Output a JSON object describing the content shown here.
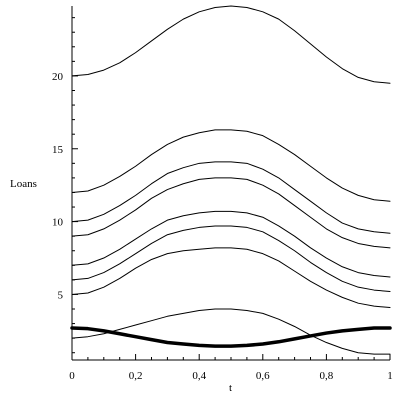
{
  "chart_data": {
    "type": "line",
    "xlabel": "t",
    "ylabel": "Loans",
    "xlim": [
      0,
      1
    ],
    "ylim": [
      0.5,
      24.8
    ],
    "grid": false,
    "x_ticks": [
      0,
      0.2,
      0.4,
      0.6,
      0.8,
      1
    ],
    "x_tick_labels": [
      "0",
      "0,2",
      "0,4",
      "0,6",
      "0,8",
      "1"
    ],
    "y_ticks": [
      5,
      10,
      15,
      20
    ],
    "y_tick_labels": [
      "5",
      "10",
      "15",
      "20"
    ],
    "x": [
      0,
      0.05,
      0.1,
      0.15,
      0.2,
      0.25,
      0.3,
      0.35,
      0.4,
      0.45,
      0.5,
      0.55,
      0.6,
      0.65,
      0.7,
      0.75,
      0.8,
      0.85,
      0.9,
      0.95,
      1
    ],
    "series": [
      {
        "values": [
          20.0,
          20.1,
          20.4,
          20.9,
          21.6,
          22.4,
          23.2,
          23.9,
          24.4,
          24.7,
          24.8,
          24.7,
          24.4,
          23.9,
          23.1,
          22.2,
          21.3,
          20.5,
          19.9,
          19.6,
          19.5
        ],
        "color": "#000000",
        "width": 1
      },
      {
        "values": [
          12.0,
          12.1,
          12.5,
          13.1,
          13.8,
          14.6,
          15.3,
          15.8,
          16.1,
          16.3,
          16.3,
          16.2,
          15.9,
          15.3,
          14.6,
          13.8,
          13.0,
          12.3,
          11.8,
          11.5,
          11.4
        ],
        "color": "#000000",
        "width": 1
      },
      {
        "values": [
          10.0,
          10.1,
          10.5,
          11.1,
          11.8,
          12.6,
          13.3,
          13.7,
          14.0,
          14.1,
          14.1,
          14.0,
          13.6,
          13.0,
          12.2,
          11.4,
          10.6,
          9.9,
          9.5,
          9.3,
          9.2
        ],
        "color": "#000000",
        "width": 1
      },
      {
        "values": [
          9.0,
          9.1,
          9.5,
          10.1,
          10.8,
          11.6,
          12.2,
          12.6,
          12.9,
          13.0,
          13.0,
          12.9,
          12.5,
          11.9,
          11.1,
          10.3,
          9.5,
          8.9,
          8.5,
          8.3,
          8.2
        ],
        "color": "#000000",
        "width": 1
      },
      {
        "values": [
          7.0,
          7.1,
          7.5,
          8.1,
          8.8,
          9.5,
          10.1,
          10.4,
          10.6,
          10.7,
          10.7,
          10.6,
          10.3,
          9.7,
          9.0,
          8.2,
          7.5,
          6.9,
          6.5,
          6.3,
          6.2
        ],
        "color": "#000000",
        "width": 1
      },
      {
        "values": [
          6.0,
          6.1,
          6.5,
          7.1,
          7.8,
          8.5,
          9.1,
          9.4,
          9.6,
          9.7,
          9.7,
          9.6,
          9.3,
          8.7,
          8.0,
          7.2,
          6.5,
          5.9,
          5.5,
          5.3,
          5.2
        ],
        "color": "#000000",
        "width": 1
      },
      {
        "values": [
          5.0,
          5.1,
          5.5,
          6.1,
          6.8,
          7.4,
          7.8,
          8.0,
          8.1,
          8.2,
          8.2,
          8.1,
          7.8,
          7.3,
          6.6,
          5.9,
          5.3,
          4.8,
          4.4,
          4.2,
          4.1
        ],
        "color": "#000000",
        "width": 1
      },
      {
        "values": [
          2.0,
          2.1,
          2.3,
          2.6,
          2.9,
          3.2,
          3.5,
          3.7,
          3.9,
          4.0,
          4.0,
          3.9,
          3.7,
          3.3,
          2.8,
          2.2,
          1.7,
          1.3,
          1.0,
          0.9,
          0.9
        ],
        "color": "#000000",
        "width": 1
      },
      {
        "values": [
          2.7,
          2.65,
          2.5,
          2.3,
          2.1,
          1.9,
          1.7,
          1.6,
          1.5,
          1.45,
          1.45,
          1.5,
          1.6,
          1.75,
          1.95,
          2.15,
          2.35,
          2.5,
          2.6,
          2.7,
          2.7
        ],
        "color": "#000000",
        "width": 3.5
      }
    ]
  }
}
